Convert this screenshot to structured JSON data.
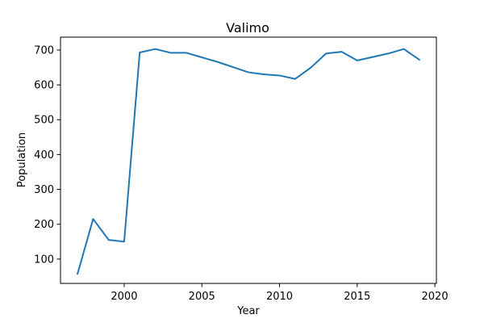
{
  "chart_data": {
    "type": "line",
    "title": "Valimo",
    "xlabel": "Year",
    "ylabel": "Population",
    "xlim": [
      1995.9,
      2020.1
    ],
    "ylim": [
      30,
      737
    ],
    "xticks": [
      2000,
      2005,
      2010,
      2015,
      2020
    ],
    "yticks": [
      100,
      200,
      300,
      400,
      500,
      600,
      700
    ],
    "grid": false,
    "legend": "none",
    "series": [
      {
        "color": "#1f77b4",
        "x": [
          1997,
          1998,
          1999,
          2000,
          2001,
          2002,
          2003,
          2004,
          2005,
          2006,
          2007,
          2008,
          2009,
          2010,
          2011,
          2012,
          2013,
          2014,
          2015,
          2016,
          2017,
          2018,
          2019
        ],
        "y": [
          58,
          215,
          155,
          150,
          693,
          703,
          692,
          692,
          679,
          666,
          651,
          636,
          630,
          627,
          617,
          649,
          690,
          695,
          670,
          680,
          690,
          703,
          672
        ]
      }
    ]
  }
}
